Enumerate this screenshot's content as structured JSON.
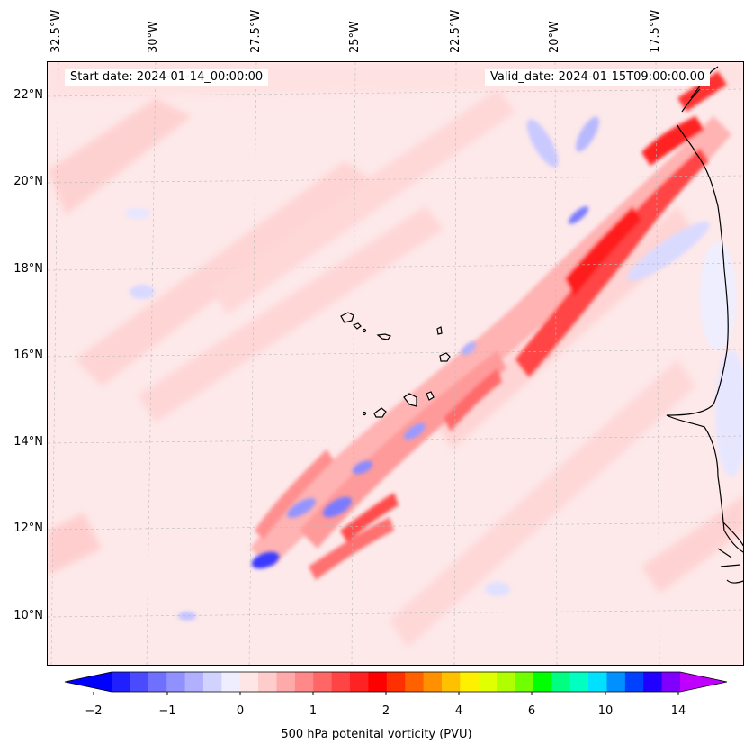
{
  "map": {
    "lon_labels": [
      "32.5°W",
      "30°W",
      "27.5°W",
      "25°W",
      "22.5°W",
      "20°W",
      "17.5°W"
    ],
    "lat_labels": [
      "22°N",
      "20°N",
      "18°N",
      "16°N",
      "14°N",
      "12°N",
      "10°N"
    ],
    "start_date": "Start date: 2024-01-14_00:00:00",
    "valid_date": "Valid_date: 2024-01-15T09:00:00.00",
    "background_color": "#fde9ea",
    "features": [
      "coastline-west-africa",
      "cape-verde-islands",
      "potential-vorticity-contours"
    ]
  },
  "colorbar": {
    "label": "500 hPa potenital vorticity (PVU)",
    "tick_labels": [
      "−2",
      "−1",
      "0",
      "1",
      "2",
      "4",
      "6",
      "10",
      "14"
    ],
    "colors": [
      "#0000ff",
      "#2020ff",
      "#4a4aff",
      "#7070ff",
      "#9090ff",
      "#b0b0ff",
      "#d2d2ff",
      "#eeeeff",
      "#ffe6e6",
      "#ffcccc",
      "#ffaaaa",
      "#ff8888",
      "#ff6666",
      "#ff4444",
      "#ff2222",
      "#ff0000",
      "#ff3000",
      "#ff6000",
      "#ff9000",
      "#ffc000",
      "#fff000",
      "#e0ff00",
      "#b0ff00",
      "#70ff00",
      "#00ff00",
      "#00ff80",
      "#00ffc0",
      "#00e0ff",
      "#0090ff",
      "#0040ff",
      "#2000ff",
      "#8000ff",
      "#c000ff"
    ]
  }
}
